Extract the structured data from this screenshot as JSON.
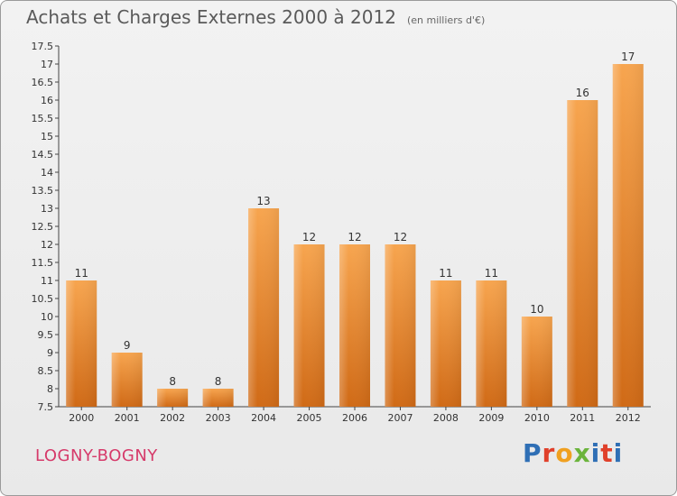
{
  "title": "Achats et Charges Externes 2000 à 2012",
  "unit": "(en milliers d'€)",
  "town": "LOGNY-BOGNY",
  "logo": {
    "letters": [
      "P",
      "r",
      "o",
      "x",
      "i",
      "t",
      "i"
    ]
  },
  "colors": {
    "bar_light": "#f5a04a",
    "bar_dark": "#d46d18",
    "title": "#5a5a5a",
    "town": "#d63a6a"
  },
  "chart_data": {
    "type": "bar",
    "title": "Achats et Charges Externes 2000 à 2012",
    "categories": [
      "2000",
      "2001",
      "2002",
      "2003",
      "2004",
      "2005",
      "2006",
      "2007",
      "2008",
      "2009",
      "2010",
      "2011",
      "2012"
    ],
    "values": [
      11,
      9,
      8,
      8,
      13,
      12,
      12,
      12,
      11,
      11,
      10,
      16,
      17
    ],
    "ylim": [
      7.5,
      17.5
    ],
    "yticks": [
      "7.5",
      "8",
      "8.5",
      "9",
      "9.5",
      "10",
      "10.5",
      "11",
      "11.5",
      "12",
      "12.5",
      "13",
      "13.5",
      "14",
      "14.5",
      "15",
      "15.5",
      "16",
      "16.5",
      "17",
      "17.5"
    ],
    "grid": false,
    "xlabel": "",
    "ylabel": ""
  }
}
